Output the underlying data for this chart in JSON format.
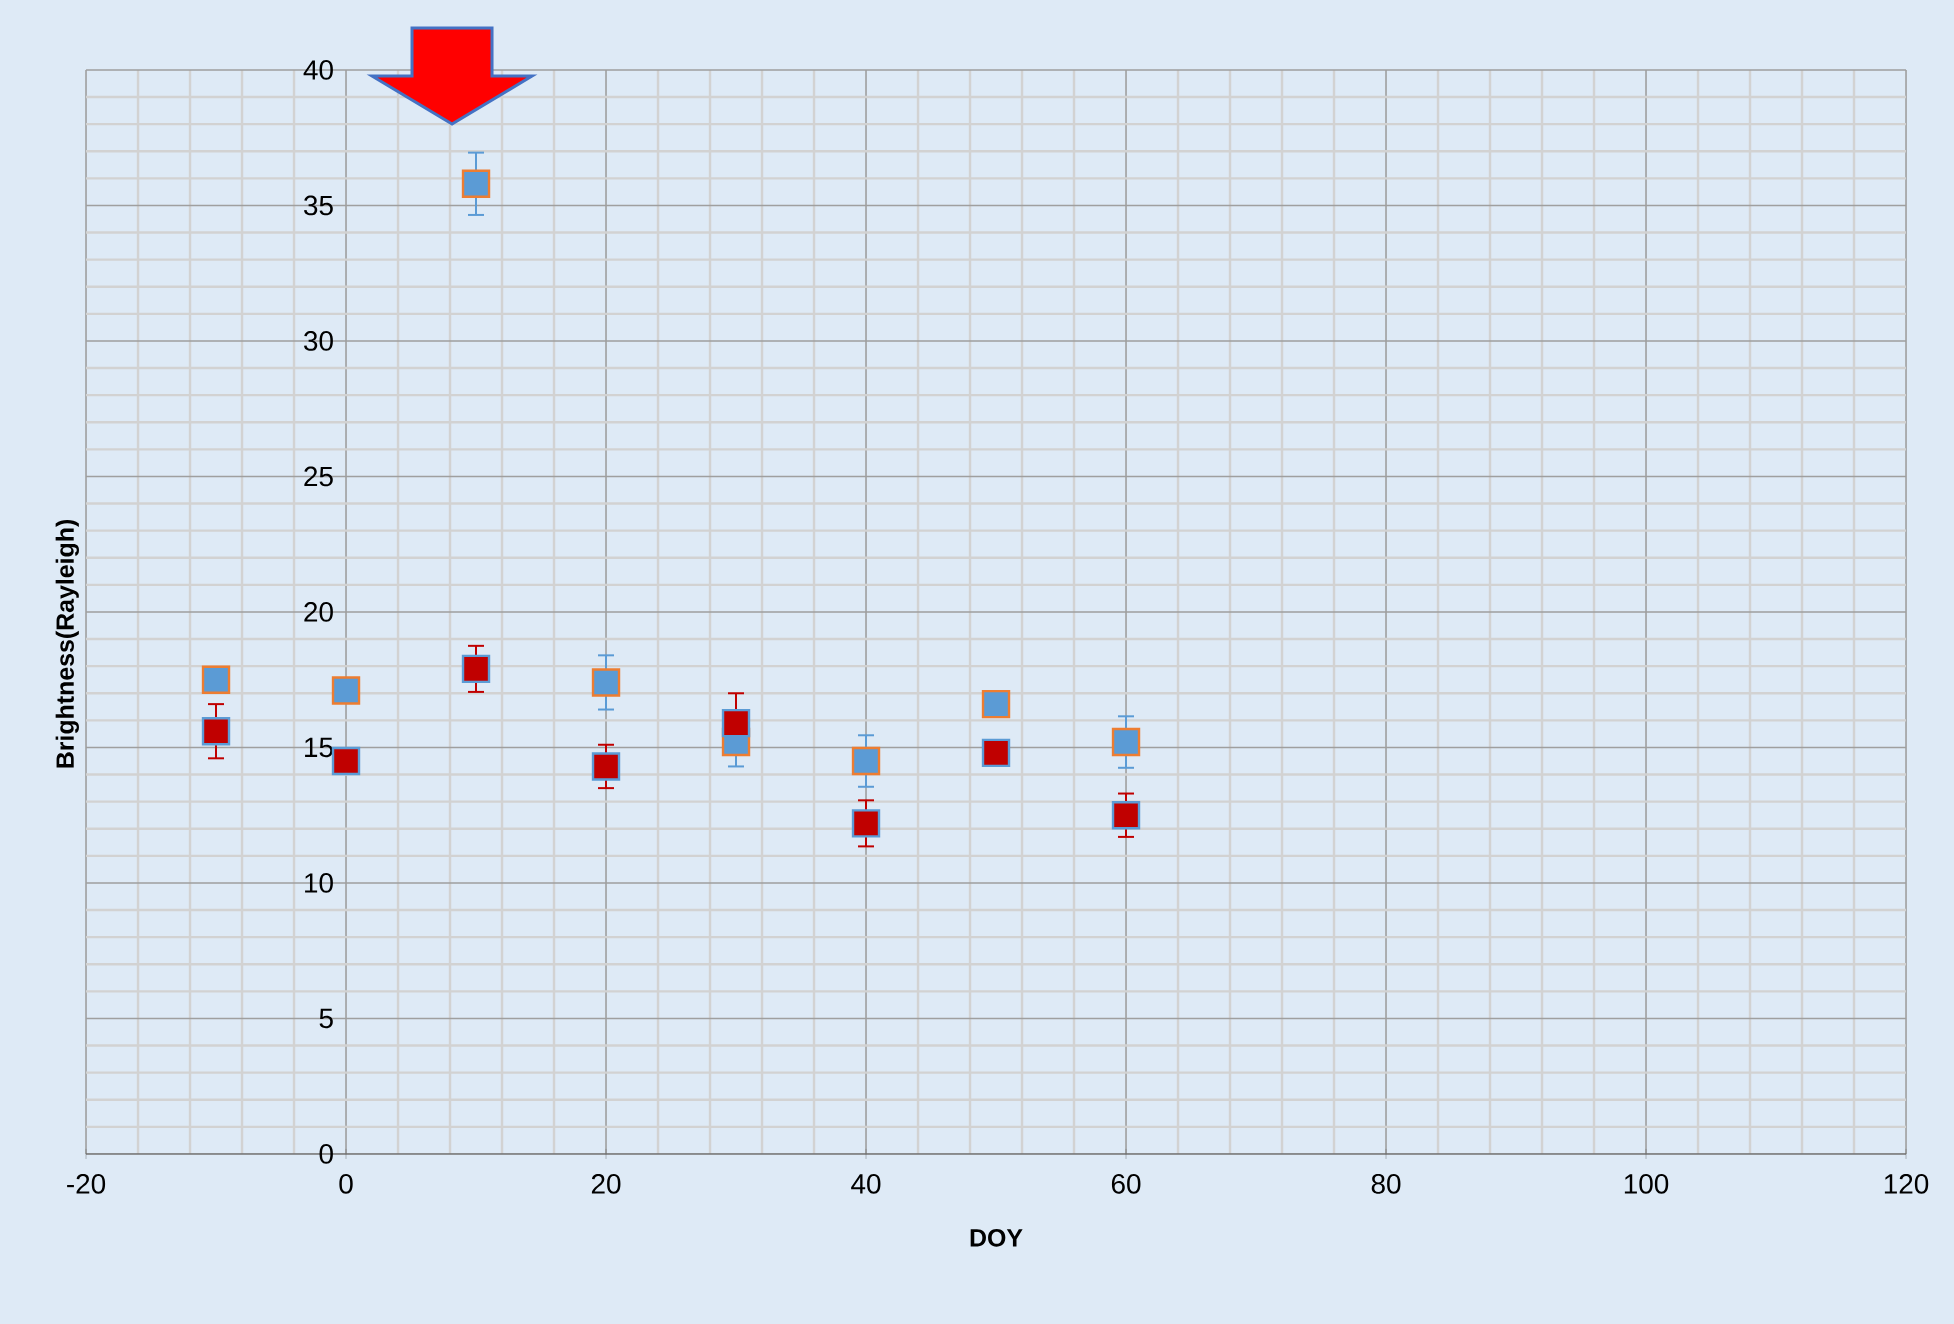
{
  "chart_data": {
    "type": "scatter",
    "xlabel": "DOY",
    "ylabel": "Brightness(Rayleigh)",
    "x": [
      -10,
      0,
      10,
      20,
      30,
      40,
      50,
      60
    ],
    "series": [
      {
        "color": "#5b9bd5",
        "values": [
          17.5,
          17.1,
          35.8,
          17.4,
          15.2,
          14.5,
          16.6,
          15.2
        ],
        "errors": [
          null,
          null,
          1.15,
          1.0,
          0.9,
          0.95,
          null,
          0.95
        ]
      },
      {
        "color": "#c00000",
        "values": [
          15.6,
          14.5,
          17.9,
          14.3,
          15.9,
          12.2,
          14.8,
          12.5
        ],
        "errors": [
          1.0,
          null,
          0.85,
          0.8,
          1.1,
          0.85,
          null,
          0.8
        ]
      }
    ],
    "xlim": [
      -20,
      120
    ],
    "xticks": [
      -20,
      0,
      20,
      40,
      60,
      80,
      100,
      120
    ],
    "ylim": [
      0,
      40
    ],
    "yticks": [
      0,
      5,
      10,
      15,
      20,
      25,
      30,
      35,
      40
    ],
    "grid": true,
    "marker": "square"
  }
}
